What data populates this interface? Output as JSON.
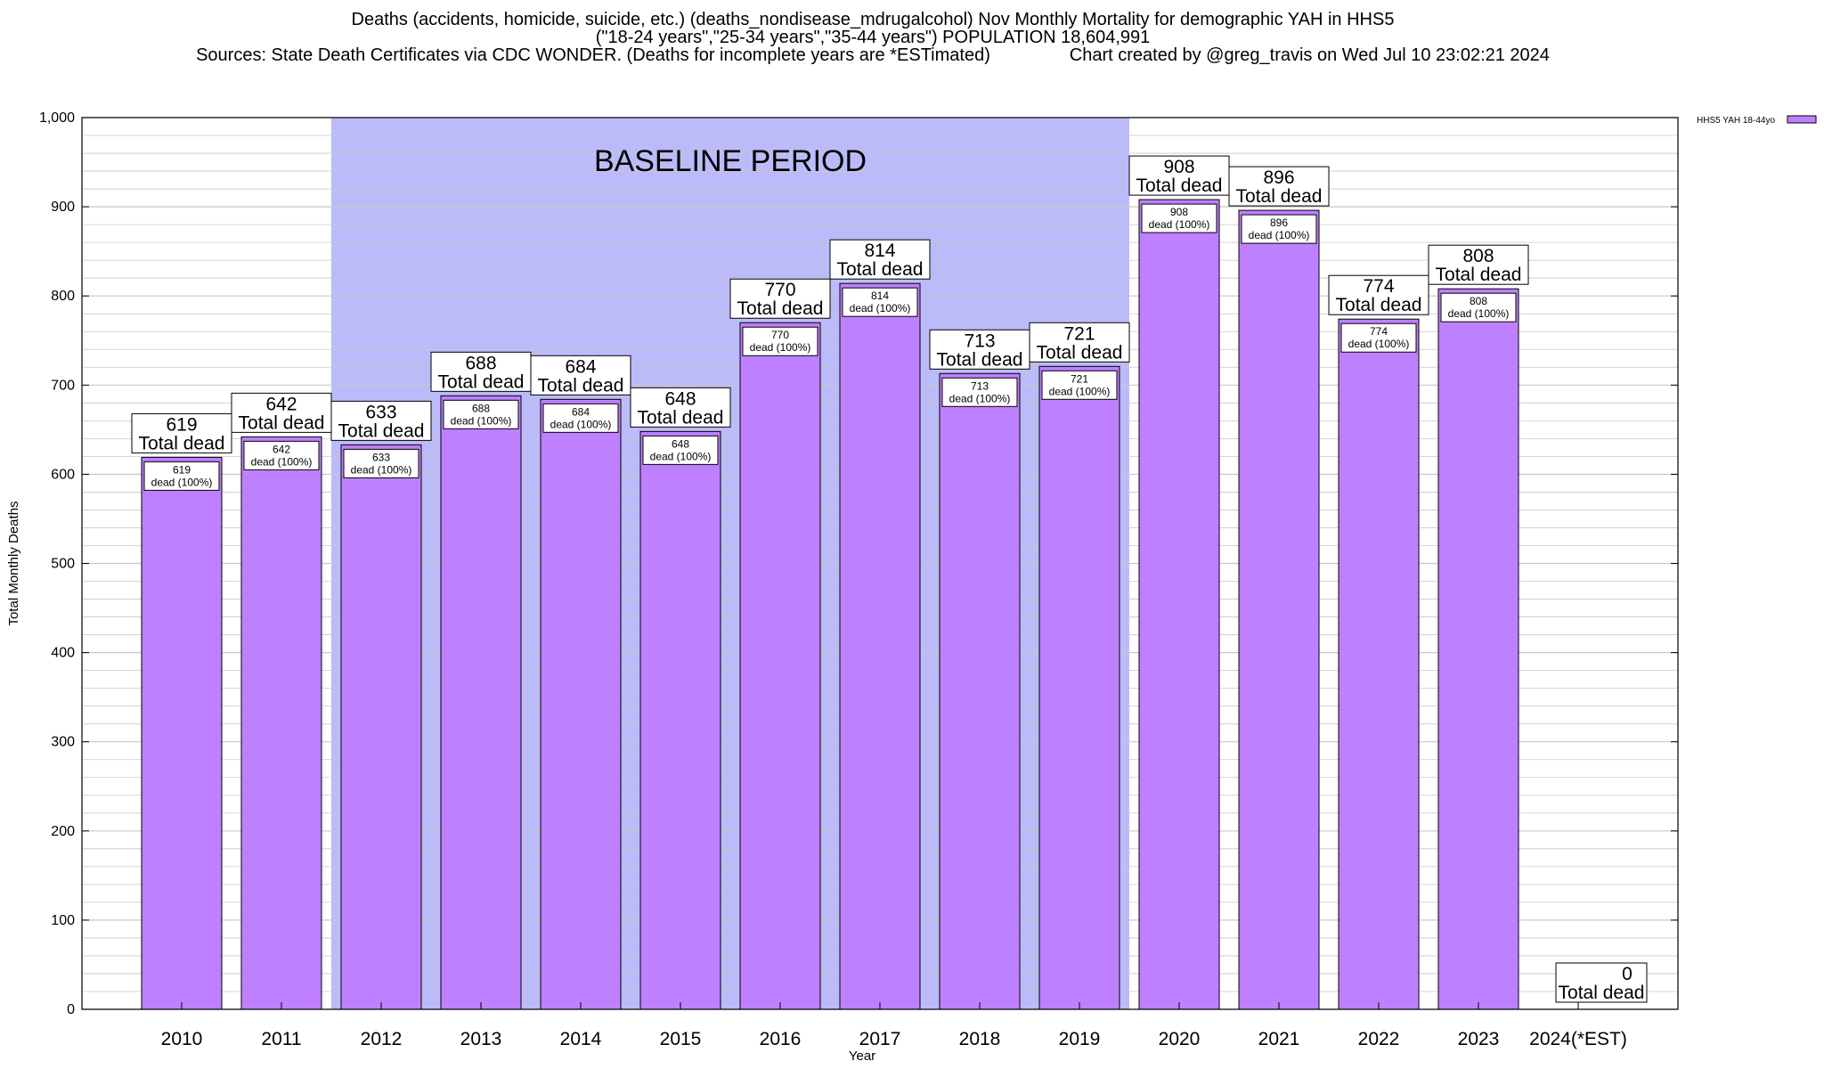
{
  "header": {
    "title_line1": "Deaths (accidents, homicide, suicide, etc.) (deaths_nondisease_mdrugalcohol) Nov Monthly Mortality for demographic YAH in HHS5",
    "title_line2": "(\"18-24 years\",\"25-34 years\",\"35-44 years\") POPULATION 18,604,991",
    "title_line3": "Sources: State Death Certificates via CDC WONDER. (Deaths for incomplete years are *ESTimated)                Chart created by @greg_travis on Wed Jul 10 23:02:21 2024"
  },
  "chart_data": {
    "type": "bar",
    "categories": [
      "2010",
      "2011",
      "2012",
      "2013",
      "2014",
      "2015",
      "2016",
      "2017",
      "2018",
      "2019",
      "2020",
      "2021",
      "2022",
      "2023",
      "2024(*EST)"
    ],
    "series": [
      {
        "name": "HHS5 YAH 18-44yo",
        "values": [
          619,
          642,
          633,
          688,
          684,
          648,
          770,
          814,
          713,
          721,
          908,
          896,
          774,
          808,
          0
        ]
      }
    ],
    "total_label_suffix": "Total dead",
    "inner_label_suffix": "dead (100%)",
    "xlabel": "Year",
    "ylabel": "Total Monthly Deaths",
    "ylim": [
      0,
      1000
    ],
    "yticks": [
      0,
      100,
      200,
      300,
      400,
      500,
      600,
      700,
      800,
      900,
      1000
    ],
    "ytick_labels": [
      "0",
      "100",
      "200",
      "300",
      "400",
      "500",
      "600",
      "700",
      "800",
      "900",
      "1,000"
    ],
    "grid": true,
    "legend_position": "top-right",
    "baseline_period": {
      "label": "BASELINE PERIOD",
      "from": "2012",
      "to": "2019"
    },
    "colors": {
      "bar": "#bf80ff",
      "baseline": "#bbbbf9",
      "grid": "#c8c8c8"
    }
  }
}
